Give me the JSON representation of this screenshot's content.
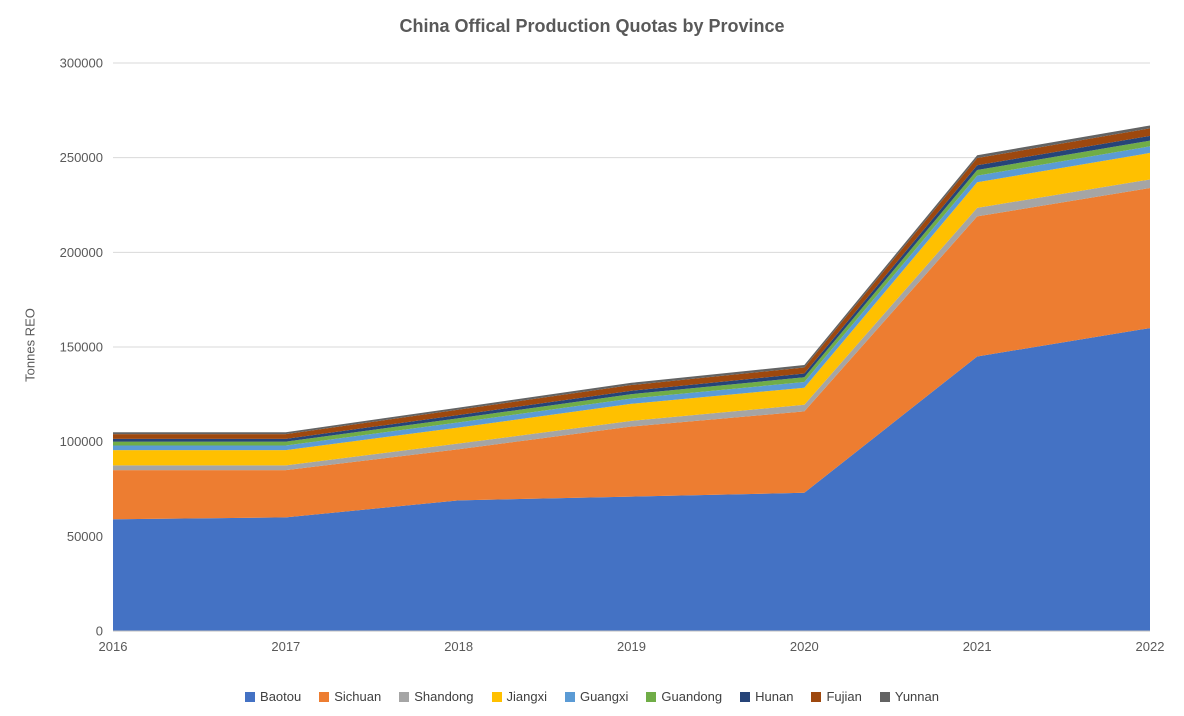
{
  "chart_data": {
    "type": "area",
    "stacked": true,
    "title": "China Offical Production Quotas by Province",
    "xlabel": "",
    "ylabel": "Tonnes REO",
    "ylim": [
      0,
      300000
    ],
    "ytick_interval": 50000,
    "yticks": [
      "0",
      "50000",
      "100000",
      "150000",
      "200000",
      "250000",
      "300000"
    ],
    "x": [
      "2016",
      "2017",
      "2018",
      "2019",
      "2020",
      "2021",
      "2022"
    ],
    "grid": "horizontal",
    "legend_position": "bottom",
    "series": [
      {
        "name": "Baotou",
        "color": "#4472C4",
        "values": [
          59000,
          60000,
          69000,
          71000,
          73000,
          145000,
          160000
        ]
      },
      {
        "name": "Sichuan",
        "color": "#ED7D31",
        "values": [
          26000,
          25000,
          27000,
          37000,
          43000,
          74000,
          74000
        ]
      },
      {
        "name": "Shandong",
        "color": "#A5A5A5",
        "values": [
          2500,
          2500,
          3000,
          3000,
          3500,
          4500,
          4500
        ]
      },
      {
        "name": "Jiangxi",
        "color": "#FFC000",
        "values": [
          8000,
          8000,
          8500,
          9000,
          9000,
          13500,
          14000
        ]
      },
      {
        "name": "Guangxi",
        "color": "#5B9BD5",
        "values": [
          2500,
          2500,
          2700,
          2800,
          3000,
          3500,
          3500
        ]
      },
      {
        "name": "Guandong",
        "color": "#70AD47",
        "values": [
          2000,
          2000,
          2200,
          2300,
          2500,
          3000,
          3000
        ]
      },
      {
        "name": "Hunan",
        "color": "#264478",
        "values": [
          1500,
          1500,
          1700,
          1800,
          2000,
          2500,
          2500
        ]
      },
      {
        "name": "Fujian",
        "color": "#9E480E",
        "values": [
          2500,
          2500,
          2800,
          3000,
          3200,
          3800,
          4000
        ]
      },
      {
        "name": "Yunnan",
        "color": "#636363",
        "values": [
          1000,
          1000,
          1100,
          1200,
          1300,
          1500,
          1500
        ]
      }
    ]
  }
}
